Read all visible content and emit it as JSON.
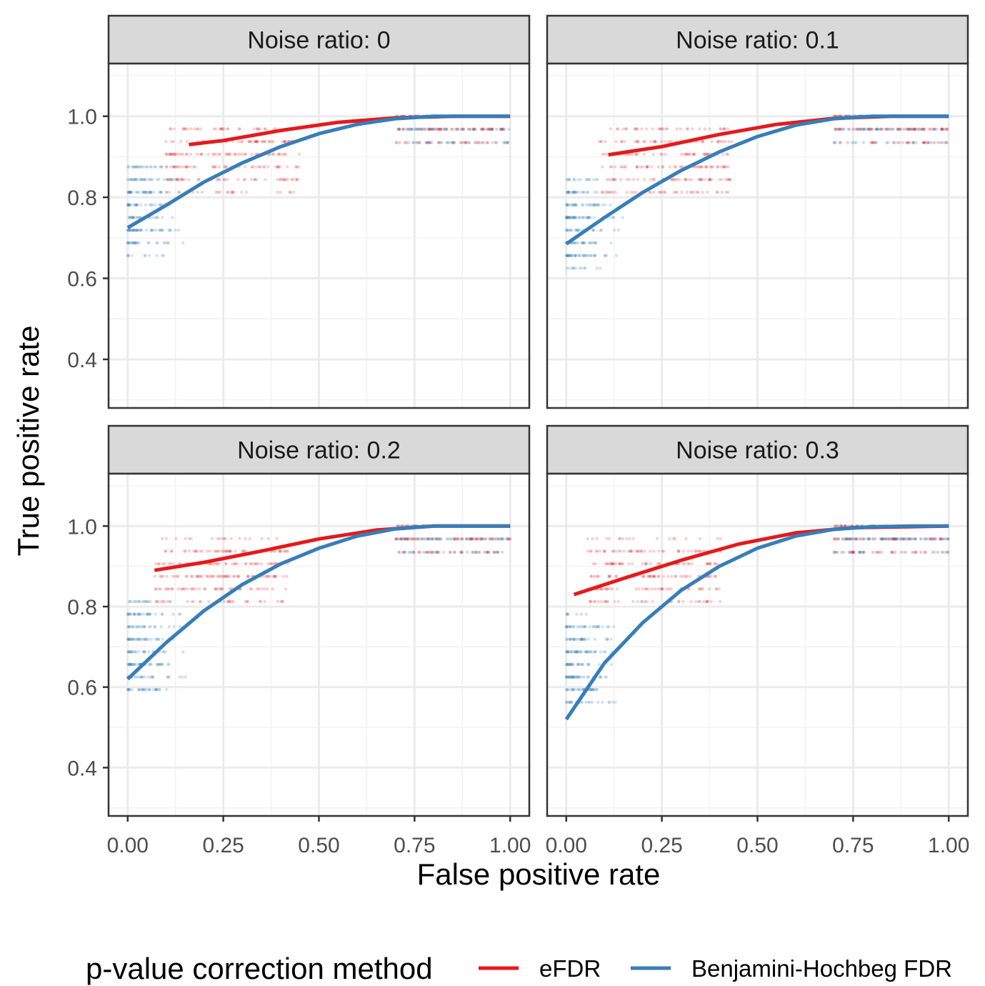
{
  "chart_data": {
    "type": "scatter",
    "xlabel": "False positive rate",
    "ylabel": "True positive rate",
    "xlim": [
      -0.05,
      1.05
    ],
    "ylim": [
      0.28,
      1.13
    ],
    "x_ticks": [
      "0.00",
      "0.25",
      "0.50",
      "0.75",
      "1.00"
    ],
    "y_ticks": [
      "0.4",
      "0.6",
      "0.8",
      "1.0"
    ],
    "grid": true,
    "legend": {
      "title": "p-value correction method",
      "position": "bottom",
      "entries": [
        {
          "label": "eFDR",
          "color": "#e41a1c"
        },
        {
          "label": "Benjamini-Hochbeg FDR",
          "color": "#377eb8"
        }
      ]
    },
    "panels": [
      {
        "title": "Noise ratio: 0",
        "series": [
          {
            "name": "eFDR",
            "color": "#e41a1c",
            "x": [
              0.16,
              0.25,
              0.4,
              0.55,
              0.7,
              0.85,
              1.0
            ],
            "y": [
              0.93,
              0.94,
              0.965,
              0.985,
              0.996,
              1.0,
              1.0
            ]
          },
          {
            "name": "Benjamini-Hochbeg FDR",
            "color": "#377eb8",
            "x": [
              0.0,
              0.1,
              0.2,
              0.3,
              0.4,
              0.5,
              0.6,
              0.7,
              0.8,
              0.9,
              1.0
            ],
            "y": [
              0.725,
              0.78,
              0.838,
              0.885,
              0.925,
              0.957,
              0.98,
              0.994,
              1.0,
              1.0,
              1.0
            ]
          }
        ]
      },
      {
        "title": "Noise ratio: 0.1",
        "series": [
          {
            "name": "eFDR",
            "color": "#e41a1c",
            "x": [
              0.11,
              0.25,
              0.4,
              0.55,
              0.7,
              0.85,
              1.0
            ],
            "y": [
              0.905,
              0.925,
              0.955,
              0.98,
              0.995,
              1.0,
              1.0
            ]
          },
          {
            "name": "Benjamini-Hochbeg FDR",
            "color": "#377eb8",
            "x": [
              0.0,
              0.1,
              0.2,
              0.3,
              0.4,
              0.5,
              0.6,
              0.7,
              0.8,
              0.9,
              1.0
            ],
            "y": [
              0.685,
              0.75,
              0.812,
              0.866,
              0.912,
              0.95,
              0.978,
              0.994,
              1.0,
              1.0,
              1.0
            ]
          }
        ]
      },
      {
        "title": "Noise ratio: 0.2",
        "series": [
          {
            "name": "eFDR",
            "color": "#e41a1c",
            "x": [
              0.07,
              0.2,
              0.35,
              0.5,
              0.65,
              0.8,
              1.0
            ],
            "y": [
              0.89,
              0.91,
              0.938,
              0.968,
              0.99,
              1.0,
              1.0
            ]
          },
          {
            "name": "Benjamini-Hochbeg FDR",
            "color": "#377eb8",
            "x": [
              0.0,
              0.1,
              0.2,
              0.3,
              0.4,
              0.5,
              0.6,
              0.7,
              0.8,
              0.9,
              1.0
            ],
            "y": [
              0.62,
              0.71,
              0.79,
              0.855,
              0.906,
              0.945,
              0.975,
              0.993,
              1.0,
              1.0,
              1.0
            ]
          }
        ]
      },
      {
        "title": "Noise ratio: 0.3",
        "series": [
          {
            "name": "eFDR",
            "color": "#e41a1c",
            "x": [
              0.02,
              0.15,
              0.3,
              0.45,
              0.6,
              0.75,
              1.0
            ],
            "y": [
              0.83,
              0.87,
              0.915,
              0.955,
              0.983,
              0.996,
              1.0
            ]
          },
          {
            "name": "Benjamini-Hochbeg FDR",
            "color": "#377eb8",
            "x": [
              0.0,
              0.1,
              0.2,
              0.3,
              0.4,
              0.5,
              0.6,
              0.7,
              0.8,
              0.9,
              1.0
            ],
            "y": [
              0.52,
              0.66,
              0.76,
              0.84,
              0.9,
              0.945,
              0.975,
              0.992,
              0.998,
              1.0,
              1.0
            ]
          }
        ]
      }
    ]
  }
}
